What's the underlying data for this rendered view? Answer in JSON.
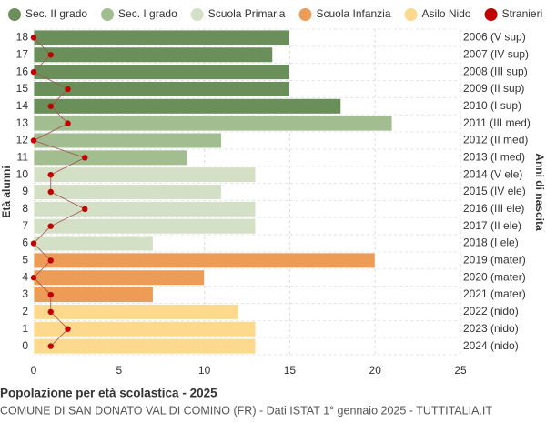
{
  "chart_data": {
    "type": "bar",
    "orientation": "horizontal",
    "title": "Popolazione per età scolastica - 2025",
    "subtitle": "COMUNE DI SAN DONATO VAL DI COMINO (FR) - Dati ISTAT 1° gennaio 2025 - TUTTITALIA.IT",
    "y_label": "Età alunni",
    "y2_label": "Anni di nascita",
    "categories": [
      "0",
      "1",
      "2",
      "3",
      "4",
      "5",
      "6",
      "7",
      "8",
      "9",
      "10",
      "11",
      "12",
      "13",
      "14",
      "15",
      "16",
      "17",
      "18"
    ],
    "right_labels": [
      "2024 (nido)",
      "2023 (nido)",
      "2022 (nido)",
      "2021 (mater)",
      "2020 (mater)",
      "2019 (mater)",
      "2018 (I ele)",
      "2017 (II ele)",
      "2016 (III ele)",
      "2015 (IV ele)",
      "2014 (V ele)",
      "2013 (I med)",
      "2012 (II med)",
      "2011 (III med)",
      "2010 (I sup)",
      "2009 (II sup)",
      "2008 (III sup)",
      "2007 (IV sup)",
      "2006 (V sup)"
    ],
    "series": [
      {
        "name": "Sec. II grado",
        "color": "#6b8f5b",
        "values": [
          null,
          null,
          null,
          null,
          null,
          null,
          null,
          null,
          null,
          null,
          null,
          null,
          null,
          null,
          18,
          15,
          15,
          14,
          15
        ]
      },
      {
        "name": "Sec. I grado",
        "color": "#a2bd8f",
        "values": [
          null,
          null,
          null,
          null,
          null,
          null,
          null,
          null,
          null,
          null,
          null,
          9,
          11,
          21,
          null,
          null,
          null,
          null,
          null
        ]
      },
      {
        "name": "Scuola Primaria",
        "color": "#d4e0c5",
        "values": [
          null,
          null,
          null,
          null,
          null,
          null,
          7,
          13,
          13,
          11,
          13,
          null,
          null,
          null,
          null,
          null,
          null,
          null,
          null
        ]
      },
      {
        "name": "Scuola Infanzia",
        "color": "#ec9c56",
        "values": [
          null,
          null,
          null,
          7,
          10,
          20,
          null,
          null,
          null,
          null,
          null,
          null,
          null,
          null,
          null,
          null,
          null,
          null,
          null
        ]
      },
      {
        "name": "Asilo Nido",
        "color": "#fdd98d",
        "values": [
          13,
          13,
          12,
          null,
          null,
          null,
          null,
          null,
          null,
          null,
          null,
          null,
          null,
          null,
          null,
          null,
          null,
          null,
          null
        ]
      },
      {
        "name": "Stranieri",
        "color": "#c00000",
        "type": "line",
        "values": [
          1,
          2,
          1,
          1,
          0,
          1,
          0,
          1,
          3,
          1,
          1,
          3,
          0,
          2,
          1,
          2,
          0,
          1,
          0
        ]
      }
    ],
    "xlim": [
      0,
      25
    ],
    "xticks": [
      0,
      5,
      10,
      15,
      20,
      25
    ],
    "grid": true
  }
}
